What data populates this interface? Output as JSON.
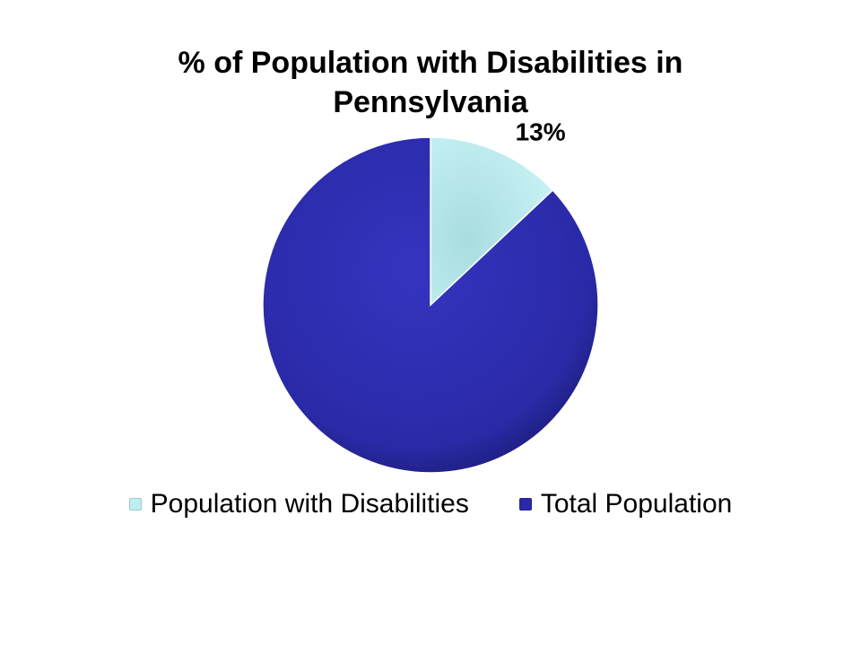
{
  "chart_data": {
    "type": "pie",
    "title": [
      "% of Population with Disabilities in",
      "Pennsylvania"
    ],
    "slices": [
      {
        "label": "Population with Disabilities",
        "value": 13,
        "display": "13%",
        "color": "#bdeef0"
      },
      {
        "label": "Total Population",
        "value": 87,
        "display": "",
        "color": "#2a2aa8"
      }
    ],
    "legend_position": "bottom",
    "start_angle_deg": 0,
    "direction": "clockwise"
  }
}
